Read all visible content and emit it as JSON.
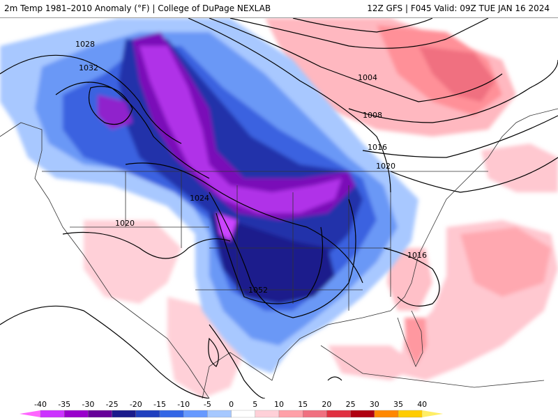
{
  "header": {
    "title": "2m Temp 1981–2010 Anomaly (°F) | College of DuPage NEXLAB",
    "run_info": "12Z GFS | F045 Valid: 09Z TUE JAN 16 2024"
  },
  "isobars": [
    "1028",
    "1032",
    "1004",
    "1008",
    "1016",
    "1020",
    "1024",
    "1020",
    "1016",
    "1052"
  ],
  "colorbar": {
    "ticks": [
      "-40",
      "-35",
      "-30",
      "-25",
      "-20",
      "-15",
      "-10",
      "-5",
      "0",
      "5",
      "10",
      "15",
      "20",
      "25",
      "30",
      "35",
      "40"
    ],
    "colors": [
      "#ff66ff",
      "#cc33ff",
      "#9900cc",
      "#660099",
      "#1a1a8c",
      "#1f3fbf",
      "#3366e6",
      "#6699ff",
      "#a6c8ff",
      "#ffffff",
      "#ffd0d8",
      "#ffa0a8",
      "#f07080",
      "#e03040",
      "#b00010",
      "#ff8800",
      "#ffcc00",
      "#ffee66"
    ]
  }
}
